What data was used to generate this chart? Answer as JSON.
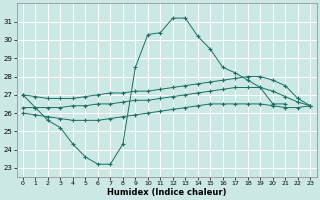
{
  "xlabel": "Humidex (Indice chaleur)",
  "bg_color": "#cce8e4",
  "grid_color": "#ffffff",
  "line_color": "#1a6e64",
  "x_values": [
    0,
    1,
    2,
    3,
    4,
    5,
    6,
    7,
    8,
    9,
    10,
    11,
    12,
    13,
    14,
    15,
    16,
    17,
    18,
    19,
    20,
    21,
    22,
    23
  ],
  "line_peak": [
    27.0,
    26.3,
    25.6,
    25.2,
    24.3,
    23.6,
    23.2,
    23.2,
    24.3,
    null,
    null,
    null,
    null,
    null,
    null,
    null,
    null,
    null,
    null,
    null,
    null,
    null,
    null,
    null
  ],
  "line_peak2": [
    null,
    null,
    null,
    null,
    null,
    null,
    null,
    null,
    null,
    null,
    null,
    null,
    null,
    null,
    null,
    null,
    null,
    null,
    null,
    null,
    null,
    null,
    null,
    null
  ],
  "line_top_full": [
    27.0,
    26.3,
    25.6,
    25.2,
    24.3,
    23.6,
    23.2,
    23.2,
    24.3,
    28.5,
    30.3,
    30.4,
    31.2,
    31.2,
    30.2,
    29.5,
    28.5,
    28.2,
    27.8,
    27.4,
    26.5,
    26.5,
    null,
    null
  ],
  "line_upper": [
    27.0,
    26.9,
    26.8,
    26.8,
    26.8,
    26.9,
    27.0,
    27.1,
    27.1,
    27.2,
    27.2,
    27.3,
    27.4,
    27.5,
    27.6,
    27.7,
    27.8,
    27.9,
    28.0,
    28.0,
    27.8,
    27.5,
    26.8,
    26.4
  ],
  "line_mid": [
    26.3,
    26.3,
    26.3,
    26.3,
    26.4,
    26.4,
    26.5,
    26.5,
    26.6,
    26.7,
    26.7,
    26.8,
    26.9,
    27.0,
    27.1,
    27.2,
    27.3,
    27.4,
    27.4,
    27.4,
    27.2,
    26.9,
    26.6,
    26.4
  ],
  "line_lower": [
    26.0,
    25.9,
    25.8,
    25.7,
    25.6,
    25.6,
    25.6,
    25.7,
    25.8,
    25.9,
    26.0,
    26.1,
    26.2,
    26.3,
    26.4,
    26.5,
    26.5,
    26.5,
    26.5,
    26.5,
    26.4,
    26.3,
    26.3,
    26.4
  ],
  "ylim": [
    22.5,
    32.0
  ],
  "yticks": [
    23,
    24,
    25,
    26,
    27,
    28,
    29,
    30,
    31
  ],
  "xticks": [
    0,
    1,
    2,
    3,
    4,
    5,
    6,
    7,
    8,
    9,
    10,
    11,
    12,
    13,
    14,
    15,
    16,
    17,
    18,
    19,
    20,
    21,
    22,
    23
  ]
}
